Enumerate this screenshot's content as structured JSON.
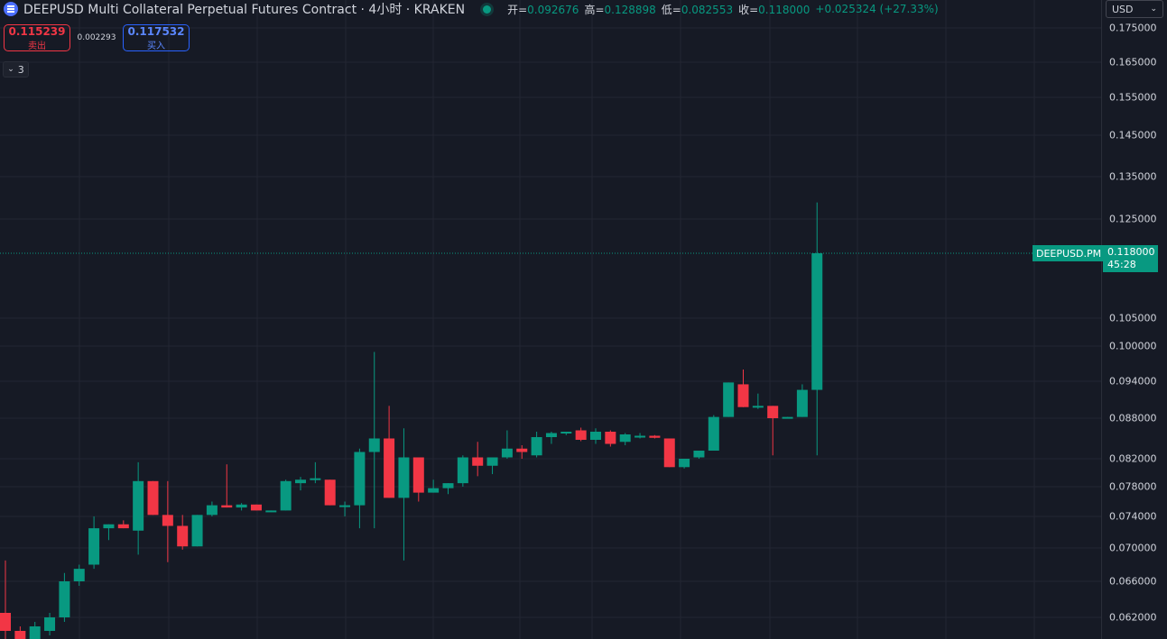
{
  "header": {
    "title": "DEEPUSD Multi Collateral Perpetual Futures Contract · 4小时 · KRAKEN",
    "open_label": "开=",
    "open_value": "0.092676",
    "high_label": "高=",
    "high_value": "0.128898",
    "low_label": "低=",
    "low_value": "0.082553",
    "close_label": "收=",
    "close_value": "0.118000",
    "change": "+0.025324 (+27.33%)"
  },
  "trade": {
    "sell_price": "0.115239",
    "sell_label": "卖出",
    "spread": "0.002293",
    "buy_price": "0.117532",
    "buy_label": "买入"
  },
  "indicator_toggle": {
    "count": "3"
  },
  "currency": {
    "value": "USD"
  },
  "last_price": {
    "symbol": "DEEPUSD.PM",
    "price": "0.118000",
    "countdown": "45:28"
  },
  "colors": {
    "up": "#089981",
    "down": "#f23645",
    "background": "#161a25",
    "grid": "#232632"
  },
  "chart_data": {
    "type": "candlestick",
    "ylim": [
      0.06,
      0.18
    ],
    "yticks": [
      "0.175000",
      "0.165000",
      "0.155000",
      "0.145000",
      "0.135000",
      "0.125000",
      "0.105000",
      "0.100000",
      "0.094000",
      "0.088000",
      "0.082000",
      "0.078000",
      "0.074000",
      "0.070000",
      "0.066000",
      "0.062000"
    ],
    "candles": [
      {
        "o": 0.0625,
        "h": 0.0685,
        "l": 0.0595,
        "c": 0.0605
      },
      {
        "o": 0.0605,
        "h": 0.061,
        "l": 0.058,
        "c": 0.059
      },
      {
        "o": 0.059,
        "h": 0.0615,
        "l": 0.058,
        "c": 0.061
      },
      {
        "o": 0.0605,
        "h": 0.0625,
        "l": 0.06,
        "c": 0.062
      },
      {
        "o": 0.062,
        "h": 0.067,
        "l": 0.0615,
        "c": 0.066
      },
      {
        "o": 0.066,
        "h": 0.068,
        "l": 0.0655,
        "c": 0.0675
      },
      {
        "o": 0.068,
        "h": 0.074,
        "l": 0.0675,
        "c": 0.0725
      },
      {
        "o": 0.0725,
        "h": 0.073,
        "l": 0.071,
        "c": 0.073
      },
      {
        "o": 0.073,
        "h": 0.0735,
        "l": 0.0725,
        "c": 0.0725
      },
      {
        "o": 0.0722,
        "h": 0.0815,
        "l": 0.0692,
        "c": 0.0788
      },
      {
        "o": 0.0788,
        "h": 0.0788,
        "l": 0.0742,
        "c": 0.0742
      },
      {
        "o": 0.0742,
        "h": 0.0788,
        "l": 0.0683,
        "c": 0.0728
      },
      {
        "o": 0.0728,
        "h": 0.0742,
        "l": 0.0698,
        "c": 0.0702
      },
      {
        "o": 0.0702,
        "h": 0.0742,
        "l": 0.0702,
        "c": 0.0742
      },
      {
        "o": 0.0742,
        "h": 0.076,
        "l": 0.074,
        "c": 0.0755
      },
      {
        "o": 0.0755,
        "h": 0.0812,
        "l": 0.0752,
        "c": 0.0752
      },
      {
        "o": 0.0752,
        "h": 0.0758,
        "l": 0.0748,
        "c": 0.0756
      },
      {
        "o": 0.0756,
        "h": 0.0756,
        "l": 0.0748,
        "c": 0.0748
      },
      {
        "o": 0.0748,
        "h": 0.0748,
        "l": 0.0746,
        "c": 0.0748
      },
      {
        "o": 0.0748,
        "h": 0.079,
        "l": 0.0748,
        "c": 0.0788
      },
      {
        "o": 0.0785,
        "h": 0.0794,
        "l": 0.0775,
        "c": 0.079
      },
      {
        "o": 0.079,
        "h": 0.0815,
        "l": 0.0785,
        "c": 0.0792
      },
      {
        "o": 0.079,
        "h": 0.079,
        "l": 0.0755,
        "c": 0.0755
      },
      {
        "o": 0.0755,
        "h": 0.076,
        "l": 0.074,
        "c": 0.0755
      },
      {
        "o": 0.0755,
        "h": 0.0835,
        "l": 0.0725,
        "c": 0.083
      },
      {
        "o": 0.083,
        "h": 0.099,
        "l": 0.0725,
        "c": 0.085
      },
      {
        "o": 0.085,
        "h": 0.09,
        "l": 0.0765,
        "c": 0.0765
      },
      {
        "o": 0.0765,
        "h": 0.0865,
        "l": 0.0685,
        "c": 0.0822
      },
      {
        "o": 0.0822,
        "h": 0.0822,
        "l": 0.076,
        "c": 0.0772
      },
      {
        "o": 0.0772,
        "h": 0.079,
        "l": 0.0772,
        "c": 0.0778
      },
      {
        "o": 0.0778,
        "h": 0.0785,
        "l": 0.077,
        "c": 0.0785
      },
      {
        "o": 0.0785,
        "h": 0.0825,
        "l": 0.078,
        "c": 0.0822
      },
      {
        "o": 0.0822,
        "h": 0.0845,
        "l": 0.0795,
        "c": 0.081
      },
      {
        "o": 0.081,
        "h": 0.0822,
        "l": 0.0798,
        "c": 0.0822
      },
      {
        "o": 0.0822,
        "h": 0.0862,
        "l": 0.082,
        "c": 0.0835
      },
      {
        "o": 0.0835,
        "h": 0.084,
        "l": 0.082,
        "c": 0.083
      },
      {
        "o": 0.0825,
        "h": 0.086,
        "l": 0.0822,
        "c": 0.0852
      },
      {
        "o": 0.0852,
        "h": 0.086,
        "l": 0.0842,
        "c": 0.0858
      },
      {
        "o": 0.0858,
        "h": 0.086,
        "l": 0.0855,
        "c": 0.086
      },
      {
        "o": 0.0862,
        "h": 0.0866,
        "l": 0.0846,
        "c": 0.0848
      },
      {
        "o": 0.0848,
        "h": 0.0865,
        "l": 0.0842,
        "c": 0.086
      },
      {
        "o": 0.086,
        "h": 0.0862,
        "l": 0.0838,
        "c": 0.0842
      },
      {
        "o": 0.0845,
        "h": 0.0858,
        "l": 0.084,
        "c": 0.0856
      },
      {
        "o": 0.0852,
        "h": 0.0858,
        "l": 0.085,
        "c": 0.0854
      },
      {
        "o": 0.0854,
        "h": 0.0855,
        "l": 0.085,
        "c": 0.0851
      },
      {
        "o": 0.085,
        "h": 0.085,
        "l": 0.0808,
        "c": 0.0808
      },
      {
        "o": 0.0808,
        "h": 0.082,
        "l": 0.0806,
        "c": 0.082
      },
      {
        "o": 0.0822,
        "h": 0.0832,
        "l": 0.082,
        "c": 0.0832
      },
      {
        "o": 0.0832,
        "h": 0.0885,
        "l": 0.0832,
        "c": 0.0882
      },
      {
        "o": 0.0882,
        "h": 0.0938,
        "l": 0.0882,
        "c": 0.0938
      },
      {
        "o": 0.0935,
        "h": 0.096,
        "l": 0.0898,
        "c": 0.0898
      },
      {
        "o": 0.0898,
        "h": 0.092,
        "l": 0.0895,
        "c": 0.09
      },
      {
        "o": 0.09,
        "h": 0.09,
        "l": 0.0825,
        "c": 0.088
      },
      {
        "o": 0.088,
        "h": 0.0882,
        "l": 0.088,
        "c": 0.0882
      },
      {
        "o": 0.0882,
        "h": 0.0935,
        "l": 0.0882,
        "c": 0.0926
      },
      {
        "o": 0.0926,
        "h": 0.1289,
        "l": 0.0825,
        "c": 0.118
      }
    ]
  }
}
